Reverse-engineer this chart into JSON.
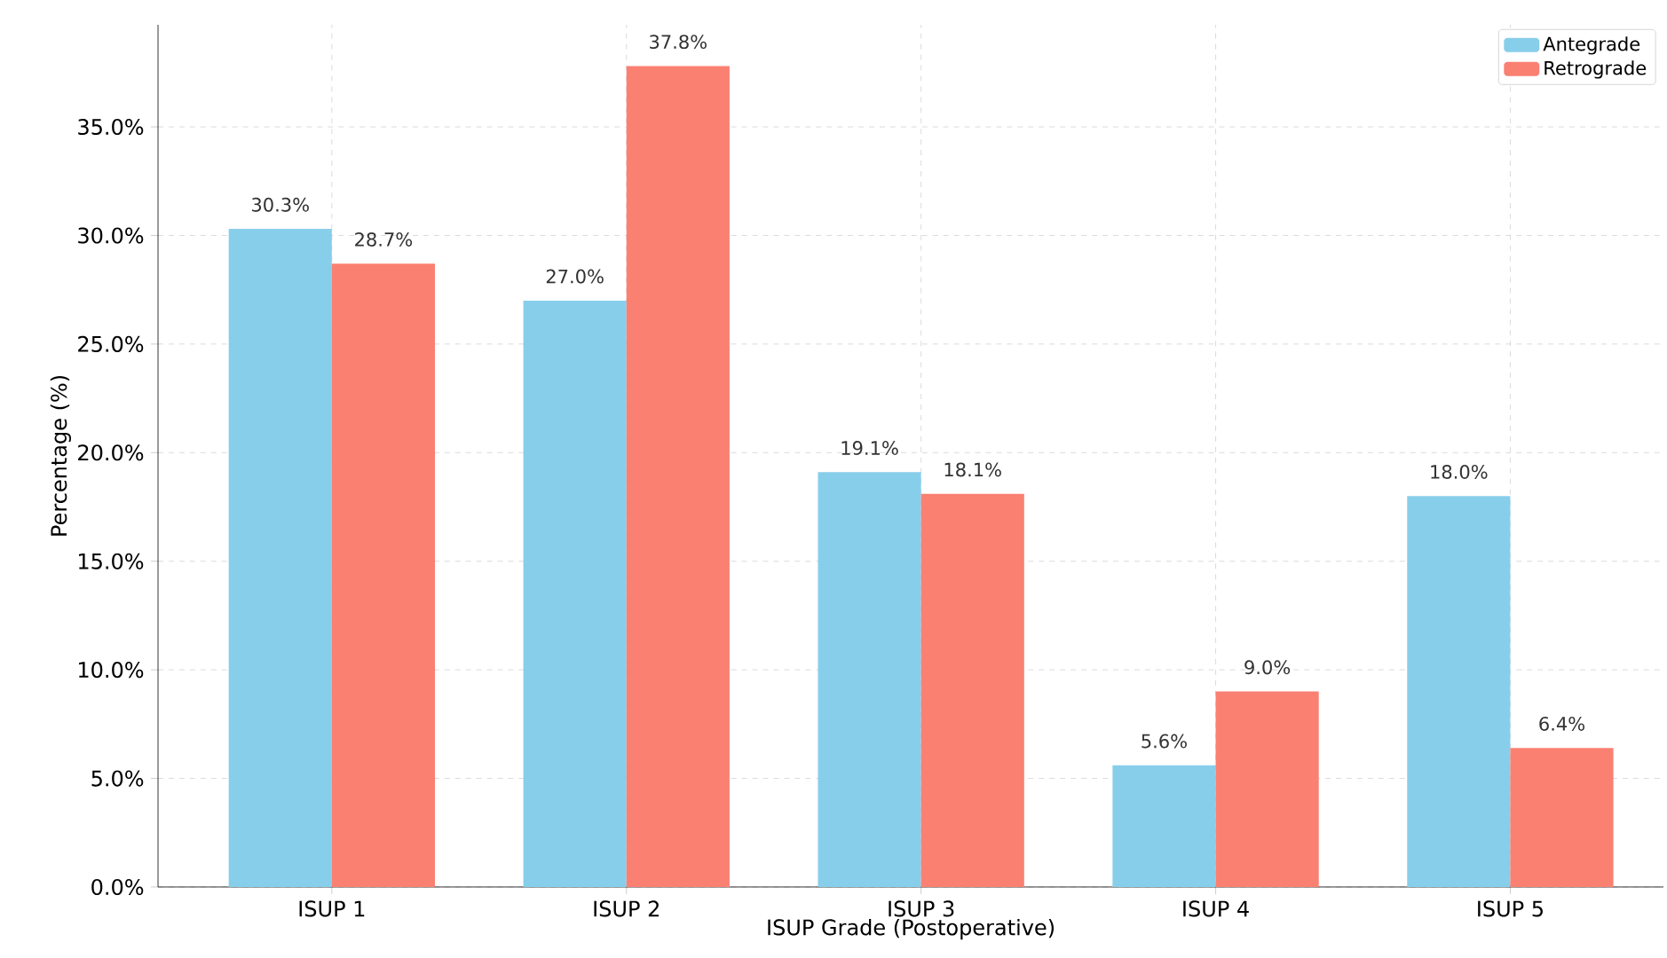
{
  "chart_data": {
    "type": "bar",
    "xlabel": "ISUP Grade (Postoperative)",
    "ylabel": "Percentage (%)",
    "categories": [
      "ISUP 1",
      "ISUP 2",
      "ISUP 3",
      "ISUP 4",
      "ISUP 5"
    ],
    "series": [
      {
        "name": "Antegrade",
        "color": "#87ceeb",
        "values": [
          30.3,
          27.0,
          19.1,
          5.6,
          18.0
        ],
        "value_labels": [
          "30.3%",
          "27.0%",
          "19.1%",
          "5.6%",
          "18.0%"
        ]
      },
      {
        "name": "Retrograde",
        "color": "#fa8072",
        "values": [
          28.7,
          37.8,
          18.1,
          9.0,
          6.4
        ],
        "value_labels": [
          "28.7%",
          "37.8%",
          "18.1%",
          "9.0%",
          "6.4%"
        ]
      }
    ],
    "ylim": [
      0,
      39.7
    ],
    "yticks": [
      {
        "value": 0,
        "label": "0.0%"
      },
      {
        "value": 5,
        "label": "5.0%"
      },
      {
        "value": 10,
        "label": "10.0%"
      },
      {
        "value": 15,
        "label": "15.0%"
      },
      {
        "value": 20,
        "label": "20.0%"
      },
      {
        "value": 25,
        "label": "25.0%"
      },
      {
        "value": 30,
        "label": "30.0%"
      },
      {
        "value": 35,
        "label": "35.0%"
      }
    ],
    "grid": true,
    "legend": "top right"
  }
}
